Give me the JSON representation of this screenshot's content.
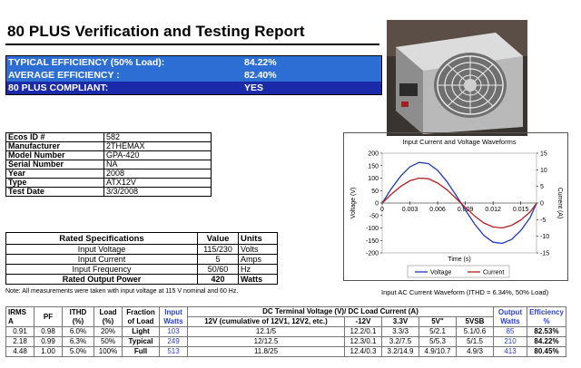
{
  "title": "80 PLUS Verification and Testing Report",
  "summary": {
    "rows": [
      {
        "label": "TYPICAL EFFICIENCY (50% Load):",
        "value": "84.22%",
        "bg": "#2d6ed4"
      },
      {
        "label": "AVERAGE EFFICIENCY :",
        "value": "82.40%",
        "bg": "#2d6ed4"
      },
      {
        "label": "80 PLUS COMPLIANT:",
        "value": "YES",
        "bg": "#1a2aa8"
      }
    ]
  },
  "photo": {
    "icon": "psu-fan-photo"
  },
  "identity": [
    {
      "k": "Ecos ID #",
      "v": "582"
    },
    {
      "k": "Manufacturer",
      "v": "2THEMAX"
    },
    {
      "k": "Model Number",
      "v": "GPA-420"
    },
    {
      "k": "Serial Number",
      "v": "NA"
    },
    {
      "k": "Year",
      "v": "2008"
    },
    {
      "k": "Type",
      "v": "ATX12V"
    },
    {
      "k": "Test Date",
      "v": "3/3/2008"
    }
  ],
  "rated": {
    "headers": [
      "Rated Specifications",
      "Value",
      "Units"
    ],
    "rows": [
      {
        "k": "Input Voltage",
        "v": "115/230",
        "u": "Volts"
      },
      {
        "k": "Input Current",
        "v": "5",
        "u": "Amps"
      },
      {
        "k": "Input Frequency",
        "v": "50/60",
        "u": "Hz"
      },
      {
        "k": "Rated Output Power",
        "v": "420",
        "u": "Watts"
      }
    ]
  },
  "note": "Note: All measurements were taken with input voltage at 115 V nominal and 60 Hz.",
  "chart_caption": "Input AC Current Waveform (ITHD = 6.34%, 50% Load)",
  "chart_data": {
    "type": "line",
    "title": "Input Current and Voltage Waveforms",
    "xlabel": "Time (s)",
    "ylabel": "Voltage (V)",
    "y2label": "Current (A)",
    "xlim": [
      0,
      0.0167
    ],
    "ylim": [
      -200,
      200
    ],
    "y2lim": [
      -15,
      15
    ],
    "xticks": [
      "0",
      "0.003",
      "0.006",
      "0.009",
      "0.012",
      "0.015"
    ],
    "yticks": [
      "200",
      "150",
      "100",
      "50",
      "0",
      "-50",
      "-100",
      "-150",
      "-200"
    ],
    "y2ticks": [
      "15",
      "10",
      "5",
      "0",
      "-5",
      "-10",
      "-15"
    ],
    "legend": "bottom",
    "series": [
      {
        "name": "Voltage",
        "color": "#1f3ab5",
        "axis": "left",
        "amplitude": 163,
        "x": [
          0,
          0.001,
          0.002,
          0.003,
          0.004,
          0.005,
          0.006,
          0.007,
          0.008,
          0.009,
          0.01,
          0.011,
          0.012,
          0.013,
          0.014,
          0.015,
          0.016,
          0.0167
        ],
        "y": [
          0,
          58,
          108,
          145,
          163,
          158,
          131,
          86,
          31,
          -28,
          -84,
          -130,
          -157,
          -162,
          -146,
          -110,
          -59,
          -1
        ]
      },
      {
        "name": "Current",
        "color": "#b51f1f",
        "axis": "right",
        "x": [
          0,
          0.001,
          0.002,
          0.003,
          0.004,
          0.005,
          0.006,
          0.007,
          0.008,
          0.009,
          0.01,
          0.011,
          0.012,
          0.013,
          0.014,
          0.015,
          0.016,
          0.0167
        ],
        "y": [
          0,
          2.7,
          5.0,
          6.7,
          7.5,
          7.3,
          6.0,
          4.0,
          1.4,
          -1.3,
          -3.9,
          -6.0,
          -7.2,
          -7.5,
          -6.7,
          -5.1,
          -2.7,
          -0.1
        ]
      }
    ]
  },
  "data_table": {
    "header1": [
      "IRMS",
      "PF",
      "ITHD (%)",
      "Load (%)",
      "Fraction of Load",
      "Input Watts",
      "DC Terminal Voltage (V)/ DC Load Current (A)",
      "Output Watts",
      "Efficiency %"
    ],
    "irms_unit": "A",
    "header2": [
      "12V (cumulative of 12V1, 12V2, etc.)",
      "-12V",
      "3.3V",
      "5V\"",
      "5VSB"
    ],
    "rows": [
      [
        "0.91",
        "0.98",
        "6.0%",
        "20%",
        "Light",
        "103",
        "12.1/5",
        "12.2/0.1",
        "3.3/3",
        "5/2.1",
        "5.1/0.6",
        "85",
        "82.53%"
      ],
      [
        "2.18",
        "0.99",
        "6.3%",
        "50%",
        "Typical",
        "249",
        "12/12.5",
        "12.3/0.1",
        "3.2/7.5",
        "5/5.3",
        "5/1.5",
        "210",
        "84.22%"
      ],
      [
        "4.48",
        "1.00",
        "5.0%",
        "100%",
        "Full",
        "513",
        "11.8/25",
        "12.4/0.3",
        "3.2/14.9",
        "4.9/10.7",
        "4.9/3",
        "413",
        "80.45%"
      ]
    ]
  }
}
